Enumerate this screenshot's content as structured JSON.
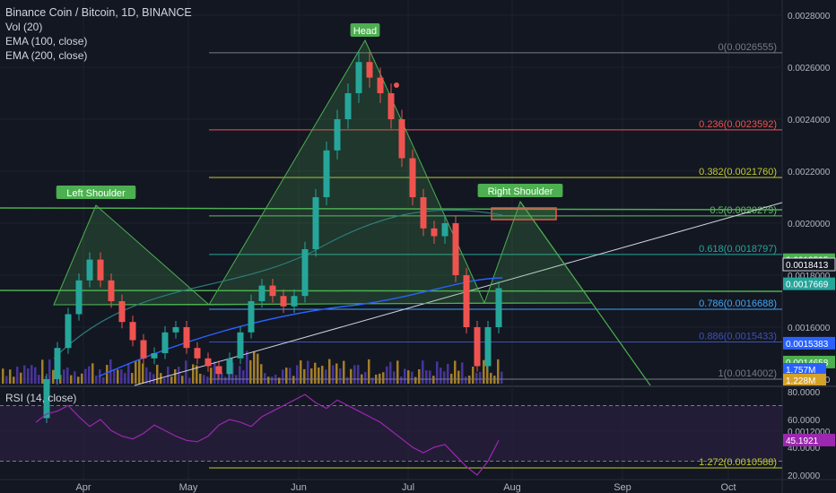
{
  "header": {
    "title": "Binance Coin / Bitcoin, 1D, BINANCE",
    "indicators": [
      "Vol (20)",
      "EMA (100, close)",
      "EMA (200, close)"
    ]
  },
  "colors": {
    "background": "#131722",
    "up": "#26a69a",
    "down": "#ef5350",
    "pattern_fill": "#4caf50",
    "ema100": "#2e7d7b",
    "ema200": "#2962ff",
    "rsi": "#9c27b0"
  },
  "chart_data": {
    "type": "line",
    "title": "Binance Coin / Bitcoin, 1D, BINANCE",
    "x_ticks": [
      "Apr",
      "May",
      "Jun",
      "Jul",
      "Aug",
      "Sep",
      "Oct"
    ],
    "y_ticks": [
      "0.0028000",
      "0.0026000",
      "0.0024000",
      "0.0022000",
      "0.0020000",
      "0.0018000",
      "0.0016000",
      "0.0014000",
      "0.0012000"
    ],
    "price_labels": [
      "0.0018595",
      "0.0018413",
      "0.0017669",
      "0.0015383",
      "0.0014658"
    ],
    "volume_labels": [
      "1.757M",
      "1.228M"
    ],
    "fib_levels": [
      {
        "label": "0(0.0026555)",
        "value": 0.0026555
      },
      {
        "label": "0.236(0.0023592)",
        "value": 0.0023592
      },
      {
        "label": "0.382(0.0021760)",
        "value": 0.002176
      },
      {
        "label": "0.5(0.0020279)",
        "value": 0.0020279
      },
      {
        "label": "0.618(0.0018797)",
        "value": 0.0018797
      },
      {
        "label": "0.786(0.0016688)",
        "value": 0.0016688
      },
      {
        "label": "0.886(0.0015433)",
        "value": 0.0015433
      },
      {
        "label": "1(0.0014002)",
        "value": 0.0014002
      },
      {
        "label": "1.272(0.0010588)",
        "value": 0.0010588
      }
    ],
    "pattern_labels": [
      "Left Shoulder",
      "Head",
      "Right Shoulder"
    ],
    "price_series": [
      0.00125,
      0.0014,
      0.00152,
      0.00165,
      0.00178,
      0.00186,
      0.00178,
      0.0017,
      0.00162,
      0.00155,
      0.00148,
      0.0015,
      0.00158,
      0.0016,
      0.00152,
      0.00148,
      0.00145,
      0.00142,
      0.00148,
      0.00158,
      0.0017,
      0.00176,
      0.00172,
      0.00168,
      0.00172,
      0.0019,
      0.0021,
      0.00228,
      0.0024,
      0.0025,
      0.00262,
      0.00256,
      0.0025,
      0.0024,
      0.00225,
      0.0021,
      0.00198,
      0.00195,
      0.002,
      0.0018,
      0.0016,
      0.00145,
      0.0016,
      0.00175
    ],
    "rsi": {
      "title": "RSI (14, close)",
      "y_ticks": [
        "80.0000",
        "60.0000",
        "40.0000",
        "20.0000"
      ],
      "value_label": "45.1921",
      "ylim": [
        15,
        85
      ],
      "values": [
        58,
        64,
        66,
        70,
        62,
        55,
        60,
        52,
        48,
        46,
        50,
        56,
        52,
        48,
        45,
        44,
        48,
        56,
        60,
        58,
        55,
        62,
        66,
        70,
        74,
        78,
        72,
        68,
        74,
        70,
        66,
        62,
        58,
        52,
        46,
        40,
        36,
        40,
        42,
        34,
        26,
        20,
        30,
        45
      ]
    }
  }
}
